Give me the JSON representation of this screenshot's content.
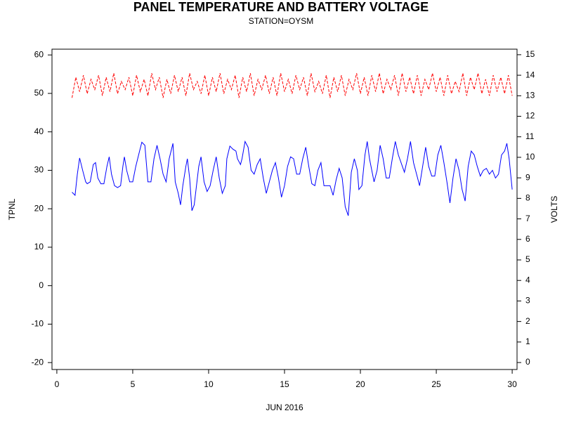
{
  "chart_data": {
    "type": "line",
    "title": "PANEL TEMPERATURE AND BATTERY VOLTAGE",
    "subtitle": "STATION=OYSM",
    "x_label": "JUN 2016",
    "y_label": "TPNL",
    "y2_label": "VOLTS",
    "xlim": [
      -0.32,
      30.32
    ],
    "xticks": [
      0,
      5,
      10,
      15,
      20,
      25,
      30
    ],
    "ylim": [
      -21.8,
      61.5
    ],
    "yticks": [
      -20,
      -10,
      0,
      10,
      20,
      30,
      40,
      50,
      60
    ],
    "y2lim": [
      -0.34,
      15.27
    ],
    "y2ticks": [
      0,
      1,
      2,
      3,
      4,
      5,
      6,
      7,
      8,
      9,
      10,
      11,
      12,
      13,
      14,
      15
    ],
    "series": [
      {
        "name": "TPNL",
        "color": "#0000ff",
        "dashed": false,
        "x": [
          1.0,
          1.2,
          1.35,
          1.5,
          1.7,
          1.9,
          2.0,
          2.2,
          2.4,
          2.55,
          2.7,
          2.9,
          3.1,
          3.3,
          3.45,
          3.6,
          3.8,
          4.0,
          4.2,
          4.35,
          4.45,
          4.6,
          4.8,
          5.0,
          5.2,
          5.45,
          5.6,
          5.8,
          6.0,
          6.2,
          6.4,
          6.6,
          6.8,
          7.0,
          7.2,
          7.4,
          7.65,
          7.8,
          8.0,
          8.15,
          8.3,
          8.5,
          8.6,
          8.75,
          8.9,
          9.05,
          9.2,
          9.35,
          9.5,
          9.7,
          9.9,
          10.1,
          10.3,
          10.5,
          10.7,
          10.9,
          11.1,
          11.2,
          11.4,
          11.6,
          11.8,
          11.9,
          12.1,
          12.2,
          12.4,
          12.6,
          12.8,
          13.0,
          13.2,
          13.4,
          13.6,
          13.8,
          14.0,
          14.2,
          14.4,
          14.6,
          14.8,
          15.0,
          15.2,
          15.4,
          15.6,
          15.8,
          16.0,
          16.2,
          16.4,
          16.6,
          16.8,
          17.0,
          17.2,
          17.4,
          17.6,
          17.8,
          18.0,
          18.2,
          18.4,
          18.6,
          18.8,
          19.0,
          19.2,
          19.4,
          19.6,
          19.8,
          19.9,
          20.1,
          20.3,
          20.45,
          20.6,
          20.9,
          21.1,
          21.3,
          21.5,
          21.7,
          21.9,
          22.1,
          22.3,
          22.5,
          22.9,
          23.1,
          23.3,
          23.5,
          23.7,
          23.9,
          24.1,
          24.3,
          24.5,
          24.7,
          24.9,
          25.1,
          25.3,
          25.5,
          25.7,
          25.9,
          26.1,
          26.3,
          26.5,
          26.7,
          26.9,
          27.1,
          27.3,
          27.5,
          27.7,
          27.9,
          28.1,
          28.3,
          28.5,
          28.7,
          28.9,
          29.1,
          29.3,
          29.5,
          29.65,
          29.8,
          30.0
        ],
        "values": [
          24.3,
          23.5,
          29,
          33.2,
          30,
          27,
          26.5,
          27,
          31.5,
          32,
          28,
          26.5,
          26.5,
          31,
          33.5,
          29,
          26,
          25.5,
          26,
          31,
          33.5,
          30,
          27,
          27,
          31,
          35,
          37.3,
          36.5,
          27,
          27,
          33,
          36.5,
          33,
          29,
          27,
          33,
          37,
          27,
          24,
          21,
          26,
          31,
          33,
          28,
          19.5,
          21,
          26,
          31,
          33.5,
          27,
          24.5,
          26,
          30,
          33.5,
          28,
          24,
          26,
          33,
          36.3,
          35.5,
          35,
          33,
          31.5,
          33,
          37.5,
          36,
          30,
          29,
          31.5,
          33,
          28,
          24,
          27,
          30,
          32,
          28,
          23,
          26,
          31,
          33.5,
          33,
          29,
          29,
          33,
          36,
          31,
          26.5,
          26,
          30,
          32,
          26,
          26,
          26,
          23.5,
          27.5,
          30.5,
          28,
          20.5,
          18.2,
          29.5,
          33,
          30,
          25,
          26,
          34,
          37.5,
          33,
          27,
          30,
          36.5,
          33,
          28,
          28,
          33,
          37.5,
          34,
          29.5,
          33,
          37.5,
          32,
          29,
          26,
          31,
          36,
          31,
          28.5,
          28.5,
          34,
          36.5,
          32,
          27,
          21.5,
          28,
          33,
          30,
          25,
          22,
          31,
          35,
          34,
          31,
          28.5,
          30,
          30.5,
          29,
          30,
          28,
          29,
          34,
          35,
          37,
          33,
          25
        ]
      },
      {
        "name": "VOLTS",
        "color": "#ff0000",
        "dashed": true,
        "axis": "y2",
        "x": [
          1,
          1.25,
          1.5,
          1.75,
          2,
          2.25,
          2.5,
          2.75,
          3,
          3.25,
          3.5,
          3.75,
          4,
          4.25,
          4.5,
          4.75,
          5,
          5.25,
          5.5,
          5.75,
          6,
          6.25,
          6.5,
          6.75,
          7,
          7.25,
          7.5,
          7.75,
          8,
          8.25,
          8.5,
          8.75,
          9,
          9.25,
          9.5,
          9.75,
          10,
          10.25,
          10.5,
          10.75,
          11,
          11.25,
          11.5,
          11.75,
          12,
          12.25,
          12.5,
          12.75,
          13,
          13.25,
          13.5,
          13.75,
          14,
          14.25,
          14.5,
          14.75,
          15,
          15.25,
          15.5,
          15.75,
          16,
          16.25,
          16.5,
          16.75,
          17,
          17.25,
          17.5,
          17.75,
          18,
          18.25,
          18.5,
          18.75,
          19,
          19.25,
          19.5,
          19.75,
          20,
          20.25,
          20.5,
          20.75,
          21,
          21.25,
          21.5,
          21.75,
          22,
          22.25,
          22.5,
          22.75,
          23,
          23.25,
          23.5,
          23.75,
          24,
          24.25,
          24.5,
          24.75,
          25,
          25.25,
          25.5,
          25.75,
          26,
          26.25,
          26.5,
          26.75,
          27,
          27.25,
          27.5,
          27.75,
          28,
          28.25,
          28.5,
          28.75,
          29,
          29.25,
          29.5,
          29.75,
          30
        ],
        "values": [
          12.9,
          13.9,
          13.2,
          14.0,
          13.1,
          13.8,
          13.3,
          14.0,
          13.0,
          13.9,
          13.2,
          14.1,
          13.1,
          13.7,
          13.3,
          13.9,
          13.0,
          14.0,
          13.2,
          13.8,
          13.0,
          14.1,
          13.3,
          13.9,
          12.9,
          13.8,
          13.1,
          14.0,
          13.2,
          13.9,
          13.0,
          14.1,
          13.3,
          13.7,
          13.1,
          14.0,
          13.0,
          13.9,
          13.2,
          14.1,
          13.1,
          13.8,
          13.3,
          14.0,
          12.9,
          13.9,
          13.2,
          14.1,
          13.0,
          13.8,
          13.3,
          14.0,
          13.1,
          13.9,
          13.0,
          14.1,
          13.2,
          13.8,
          13.1,
          14.0,
          13.3,
          13.9,
          13.0,
          14.1,
          13.2,
          13.7,
          13.1,
          14.0,
          12.9,
          13.9,
          13.2,
          14.0,
          13.0,
          13.8,
          13.3,
          14.1,
          13.1,
          13.9,
          13.0,
          14.0,
          13.2,
          14.1,
          13.1,
          13.8,
          13.3,
          14.0,
          13.0,
          14.1,
          13.2,
          13.9,
          13.1,
          14.0,
          13.0,
          13.8,
          13.3,
          14.1,
          13.2,
          13.9,
          13.0,
          14.0,
          13.1,
          13.7,
          13.2,
          14.1,
          13.0,
          13.9,
          13.3,
          14.1,
          13.1,
          13.8,
          13.0,
          14.0,
          13.2,
          13.9,
          13.1,
          14.0,
          13.0
        ]
      }
    ]
  }
}
